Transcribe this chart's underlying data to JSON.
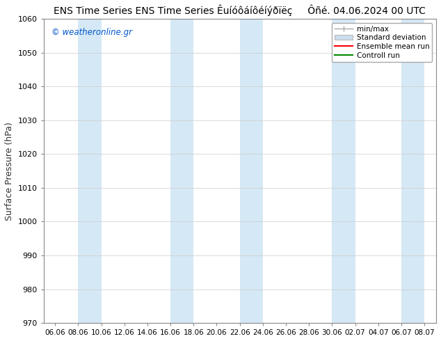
{
  "title": "ENS Time Series Êuíóôáíôéíýðïëç",
  "date_str": "Ôñé. 04.06.2024 00 UTC",
  "ylabel": "Surface Pressure (hPa)",
  "yticks": [
    970,
    980,
    990,
    1000,
    1010,
    1020,
    1030,
    1040,
    1050,
    1060
  ],
  "ylim": [
    970,
    1060
  ],
  "xtick_labels": [
    "06.06",
    "08.06",
    "10.06",
    "12.06",
    "14.06",
    "16.06",
    "18.06",
    "20.06",
    "22.06",
    "24.06",
    "26.06",
    "28.06",
    "30.06",
    "02.07",
    "04.07",
    "06.07",
    "08.07"
  ],
  "fig_bg": "#ffffff",
  "plot_bg": "#ffffff",
  "band_color": "#d5e8f5",
  "watermark": "© weatheronline.gr",
  "watermark_color": "#0055cc",
  "title_color": "#000000",
  "band_indices": [
    1,
    2,
    7,
    8,
    11,
    12,
    14,
    15,
    16
  ],
  "legend_items": [
    "min/max",
    "Standard deviation",
    "Ensemble mean run",
    "Controll run"
  ],
  "minmax_color": "#aaaaaa",
  "std_color": "#ccddee",
  "ens_color": "#ff0000",
  "ctrl_color": "#008800"
}
